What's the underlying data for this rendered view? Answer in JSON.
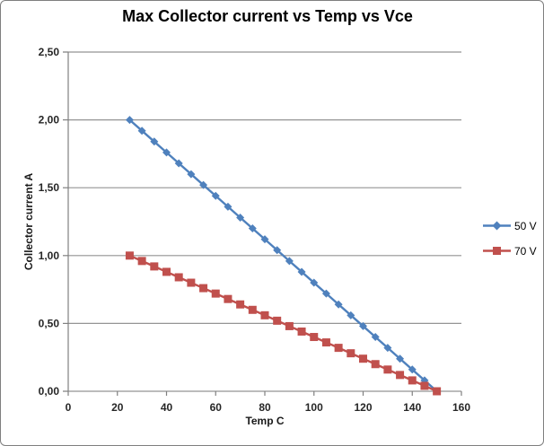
{
  "title": "Max Collector current vs Temp vs Vce",
  "chart_data": {
    "type": "line",
    "title": "Max Collector current vs Temp vs Vce",
    "xlabel": "Temp C",
    "ylabel": "Collector current A",
    "xlim": [
      0,
      160
    ],
    "ylim": [
      0,
      2.5
    ],
    "grid": true,
    "legend_position": "right",
    "x_ticks": [
      {
        "value": 0,
        "label": "0"
      },
      {
        "value": 20,
        "label": "20"
      },
      {
        "value": 40,
        "label": "40"
      },
      {
        "value": 60,
        "label": "60"
      },
      {
        "value": 80,
        "label": "80"
      },
      {
        "value": 100,
        "label": "100"
      },
      {
        "value": 120,
        "label": "120"
      },
      {
        "value": 140,
        "label": "140"
      },
      {
        "value": 160,
        "label": "160"
      }
    ],
    "y_ticks": [
      {
        "value": 0.0,
        "label": "0,00"
      },
      {
        "value": 0.5,
        "label": "0,50"
      },
      {
        "value": 1.0,
        "label": "1,00"
      },
      {
        "value": 1.5,
        "label": "1,50"
      },
      {
        "value": 2.0,
        "label": "2,00"
      },
      {
        "value": 2.5,
        "label": "2,50"
      }
    ],
    "x": [
      25,
      30,
      35,
      40,
      45,
      50,
      55,
      60,
      65,
      70,
      75,
      80,
      85,
      90,
      95,
      100,
      105,
      110,
      115,
      120,
      125,
      130,
      135,
      140,
      145,
      150
    ],
    "series": [
      {
        "name": "50 V",
        "color": "#4F81BD",
        "marker": "diamond",
        "values": [
          2.0,
          1.92,
          1.84,
          1.76,
          1.68,
          1.6,
          1.52,
          1.44,
          1.36,
          1.28,
          1.2,
          1.12,
          1.04,
          0.96,
          0.88,
          0.8,
          0.72,
          0.64,
          0.56,
          0.48,
          0.4,
          0.32,
          0.24,
          0.16,
          0.08,
          0.0
        ]
      },
      {
        "name": "70 V",
        "color": "#C0504D",
        "marker": "square",
        "values": [
          1.0,
          0.96,
          0.92,
          0.88,
          0.84,
          0.8,
          0.76,
          0.72,
          0.68,
          0.64,
          0.6,
          0.56,
          0.52,
          0.48,
          0.44,
          0.4,
          0.36,
          0.32,
          0.28,
          0.24,
          0.2,
          0.16,
          0.12,
          0.08,
          0.04,
          0.0
        ]
      }
    ],
    "colors": {
      "grid": "#949494",
      "axis": "#808080",
      "tick_text": "#262626",
      "title_text": "#000000"
    }
  }
}
